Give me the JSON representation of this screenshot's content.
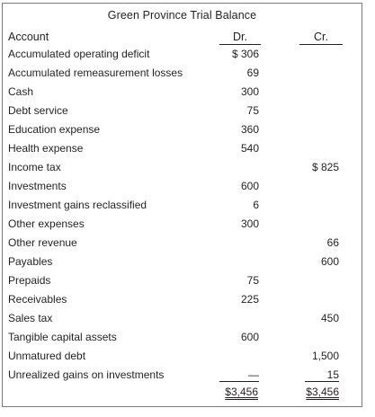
{
  "title": "Green Province Trial Balance",
  "headers": {
    "account": "Account",
    "debit": "Dr.",
    "credit": "Cr."
  },
  "rows": [
    {
      "account": "Accumulated operating deficit",
      "dr": "$  306",
      "cr": ""
    },
    {
      "account": "Accumulated remeasurement losses",
      "dr": "69",
      "cr": ""
    },
    {
      "account": "Cash",
      "dr": "300",
      "cr": ""
    },
    {
      "account": "Debt service",
      "dr": "75",
      "cr": ""
    },
    {
      "account": "Education expense",
      "dr": "360",
      "cr": ""
    },
    {
      "account": "Health expense",
      "dr": "540",
      "cr": ""
    },
    {
      "account": "Income tax",
      "dr": "",
      "cr": "$  825"
    },
    {
      "account": "Investments",
      "dr": "600",
      "cr": ""
    },
    {
      "account": "Investment gains reclassified",
      "dr": "6",
      "cr": ""
    },
    {
      "account": "Other expenses",
      "dr": "300",
      "cr": ""
    },
    {
      "account": "Other revenue",
      "dr": "",
      "cr": "66"
    },
    {
      "account": "Payables",
      "dr": "",
      "cr": "600"
    },
    {
      "account": "Prepaids",
      "dr": "75",
      "cr": ""
    },
    {
      "account": "Receivables",
      "dr": "225",
      "cr": ""
    },
    {
      "account": "Sales tax",
      "dr": "",
      "cr": "450"
    },
    {
      "account": "Tangible capital assets",
      "dr": "600",
      "cr": ""
    },
    {
      "account": "Unmatured debt",
      "dr": "",
      "cr": "1,500"
    },
    {
      "account": "Unrealized gains on investments",
      "dr": "—",
      "cr": "15"
    }
  ],
  "totals": {
    "dr": "$3,456",
    "cr": "$3,456"
  }
}
